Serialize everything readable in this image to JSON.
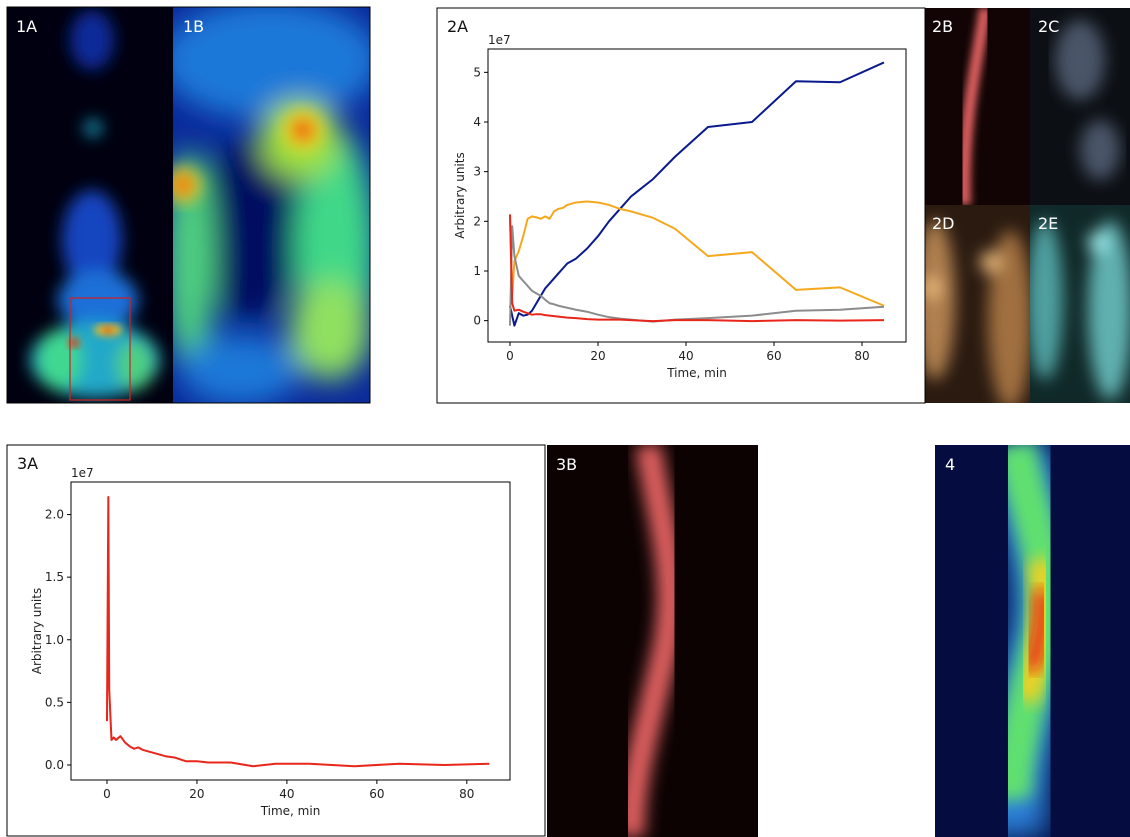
{
  "image_panels": [
    "1A",
    "1B",
    "2B",
    "2C",
    "2D",
    "2E",
    "3B",
    "4"
  ],
  "chart_data": [
    {
      "type": "line",
      "title": "2A",
      "xlabel": "Time, min",
      "ylabel": "Arbitrary units",
      "y_offset_label": "1e7",
      "x": [
        0,
        0.5,
        1,
        2,
        3,
        4,
        5,
        6,
        7,
        8,
        9,
        10,
        11,
        12,
        13,
        15,
        17.5,
        20,
        22.5,
        25,
        27.5,
        32.5,
        37.5,
        45,
        55,
        65,
        75,
        85
      ],
      "series": [
        {
          "color": "#0a1a8c",
          "values": [
            0.3,
            0.1,
            -0.1,
            0.15,
            0.1,
            0.12,
            0.2,
            0.35,
            0.5,
            0.65,
            0.75,
            0.85,
            0.95,
            1.05,
            1.15,
            1.25,
            1.45,
            1.7,
            2.0,
            2.25,
            2.5,
            2.85,
            3.3,
            3.9,
            4.0,
            4.82,
            4.8,
            5.2
          ]
        },
        {
          "color": "#f5a81c",
          "values": [
            2.1,
            0.5,
            1.2,
            1.4,
            1.7,
            2.05,
            2.1,
            2.08,
            2.05,
            2.1,
            2.05,
            2.2,
            2.25,
            2.27,
            2.33,
            2.38,
            2.4,
            2.38,
            2.33,
            2.25,
            2.2,
            2.07,
            1.85,
            1.3,
            1.38,
            0.62,
            0.67,
            0.3
          ]
        },
        {
          "color": "#8c8c8c",
          "values": [
            -0.1,
            1.9,
            1.3,
            0.9,
            0.8,
            0.7,
            0.6,
            0.55,
            0.5,
            0.42,
            0.35,
            0.33,
            0.3,
            0.28,
            0.26,
            0.22,
            0.18,
            0.12,
            0.07,
            0.04,
            0.02,
            -0.02,
            0.02,
            0.05,
            0.1,
            0.2,
            0.22,
            0.28
          ]
        },
        {
          "color": "#e8261a",
          "values": [
            2.14,
            0.35,
            0.2,
            0.22,
            0.18,
            0.15,
            0.12,
            0.13,
            0.13,
            0.11,
            0.1,
            0.09,
            0.08,
            0.07,
            0.06,
            0.05,
            0.03,
            0.02,
            0.02,
            0.02,
            0.01,
            -0.01,
            0.01,
            0.01,
            -0.01,
            0.01,
            0,
            0.01
          ]
        }
      ],
      "xlim": [
        -5,
        90
      ],
      "ylim": [
        -0.43,
        5.47
      ],
      "xticks": [
        0,
        20,
        40,
        60,
        80
      ],
      "yticks": [
        0,
        1,
        2,
        3,
        4,
        5
      ]
    },
    {
      "type": "line",
      "title": "3A",
      "xlabel": "Time, min",
      "ylabel": "Arbitrary units",
      "y_offset_label": "1e7",
      "x": [
        0,
        0.3,
        0.5,
        1,
        1.5,
        2,
        3,
        4,
        5,
        6,
        7,
        8,
        9,
        10,
        11,
        12,
        13,
        15,
        17.5,
        20,
        22.5,
        25,
        27.5,
        32.5,
        37.5,
        45,
        55,
        65,
        75,
        85
      ],
      "series": [
        {
          "color": "#e8261a",
          "values": [
            0.35,
            2.14,
            0.6,
            0.2,
            0.22,
            0.2,
            0.23,
            0.18,
            0.15,
            0.13,
            0.14,
            0.12,
            0.11,
            0.1,
            0.09,
            0.08,
            0.07,
            0.06,
            0.03,
            0.03,
            0.02,
            0.02,
            0.02,
            -0.01,
            0.01,
            0.01,
            -0.01,
            0.01,
            0,
            0.01
          ]
        }
      ],
      "xlim": [
        -8,
        89.6
      ],
      "ylim": [
        -0.12,
        2.26
      ],
      "xticks": [
        0,
        20,
        40,
        60,
        80
      ],
      "yticks": [
        {
          "value": 0,
          "label": "0.0"
        },
        0.5,
        {
          "value": 1,
          "label": "1.0"
        },
        1.5,
        {
          "value": 2,
          "label": "2.0"
        }
      ]
    }
  ]
}
